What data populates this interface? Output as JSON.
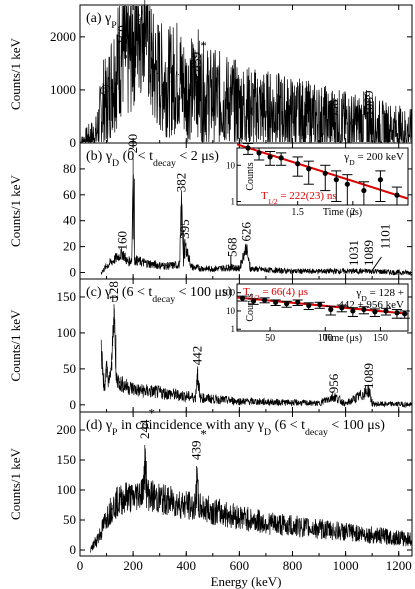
{
  "chart_data": {
    "type": "line",
    "xlabel": "Energy (keV)",
    "xlim": [
      0,
      1250
    ],
    "x_ticks": [
      0,
      200,
      400,
      600,
      800,
      1000,
      1200
    ],
    "panels": [
      {
        "id": "a",
        "label": "(a) γ",
        "label_sub": "P",
        "ylabel": "Counts/1 keV",
        "ylim": [
          0,
          2600
        ],
        "y_ticks": [
          0,
          1000,
          2000
        ],
        "series": [
          {
            "x": [
              0,
              60,
              80,
              90,
              100,
              120,
              140,
              150,
              160,
              175,
              190,
              200,
              210,
              225,
              235,
              244,
              255,
              270,
              290,
              310,
              340,
              370,
              385,
              400,
              430,
              439,
              450,
              480,
              520,
              560,
              600,
              650,
              700,
              750,
              800,
              850,
              900,
              956,
              1000,
              1050,
              1089,
              1120,
              1160,
              1200,
              1250
            ],
            "y": [
              0,
              150,
              550,
              800,
              700,
              1200,
              1450,
              1650,
              1800,
              1600,
              1700,
              2000,
              2200,
              2300,
              2500,
              2850,
              2200,
              1400,
              1300,
              1200,
              1150,
              1300,
              1100,
              1000,
              1050,
              1300,
              1000,
              900,
              850,
              800,
              700,
              650,
              620,
              580,
              540,
              500,
              460,
              420,
              380,
              350,
              420,
              300,
              270,
              240,
              200
            ]
          }
        ],
        "annotations": [
          {
            "text": "@",
            "x": 95,
            "y": 950
          },
          {
            "text": "160",
            "x": 160,
            "y": 1850,
            "rot": true
          },
          {
            "text": "c",
            "x": 218,
            "y": 2320
          },
          {
            "text": "244",
            "x": 244,
            "y": 2880,
            "rot": true,
            "star": true
          },
          {
            "text": "439",
            "x": 439,
            "y": 1350,
            "rot": true,
            "star": true
          },
          {
            "text": "956",
            "x": 956,
            "y": 450,
            "rot": true
          },
          {
            "text": "1089",
            "x": 1089,
            "y": 500,
            "rot": true
          }
        ]
      },
      {
        "id": "b",
        "label": "(b) γ",
        "label_sub": "D",
        "label_rest": " (0 < t",
        "label_sub2": "decay",
        "label_end": " < 2 μs)",
        "ylabel": "Counts/1 keV",
        "ylim": [
          -5,
          100
        ],
        "y_ticks": [
          0,
          20,
          40,
          60,
          80
        ],
        "series": [
          {
            "x": [
              80,
              100,
              130,
              160,
              180,
              195,
              200,
              205,
              230,
              280,
              330,
              375,
              382,
              390,
              395,
              420,
              470,
              520,
              568,
              600,
              626,
              640,
              700,
              800,
              900,
              1000,
              1031,
              1060,
              1089,
              1101,
              1200,
              1250
            ],
            "y": [
              0,
              5,
              10,
              15,
              8,
              10,
              88,
              10,
              8,
              6,
              5,
              6,
              58,
              8,
              22,
              4,
              3,
              3,
              4,
              3,
              20,
              3,
              2,
              1,
              1,
              1,
              1,
              1,
              1,
              1,
              0,
              0
            ]
          }
        ],
        "annotations": [
          {
            "text": "160",
            "x": 160,
            "y": 17,
            "rot": true
          },
          {
            "text": "200",
            "x": 200,
            "y": 92,
            "rot": true
          },
          {
            "text": "382",
            "x": 382,
            "y": 62,
            "rot": true
          },
          {
            "text": "395",
            "x": 395,
            "y": 26,
            "rot": true
          },
          {
            "text": "568",
            "x": 575,
            "y": 12,
            "rot": true
          },
          {
            "text": "626",
            "x": 626,
            "y": 24,
            "rot": true
          },
          {
            "text": "1031",
            "x": 1031,
            "y": 5,
            "rot": true
          },
          {
            "text": "1089",
            "x": 1089,
            "y": 5,
            "rot": true
          },
          {
            "text": "1101",
            "x": 1150,
            "y": 18,
            "rot": true
          }
        ],
        "inset": {
          "title": "γ",
          "title_sub": "D",
          "title_rest": " = 200 keV",
          "xlabel": "Time (μs)",
          "ylabel": "Counts",
          "xlim": [
            0.95,
            2.5
          ],
          "x_ticks": [
            1.5,
            2
          ],
          "y_log_ticks": [
            1,
            10
          ],
          "fit_label": "T",
          "fit_sub": "1/2",
          "fit_rest": " = 222(23) ns",
          "points": [
            {
              "x": 1.05,
              "y": 30,
              "e": 10
            },
            {
              "x": 1.15,
              "y": 22,
              "e": 8
            },
            {
              "x": 1.25,
              "y": 17,
              "e": 7
            },
            {
              "x": 1.35,
              "y": 16,
              "e": 6
            },
            {
              "x": 1.5,
              "y": 11,
              "e": 6
            },
            {
              "x": 1.6,
              "y": 8,
              "e": 5
            },
            {
              "x": 1.75,
              "y": 6,
              "e": 4
            },
            {
              "x": 1.85,
              "y": 4,
              "e": 3
            },
            {
              "x": 1.95,
              "y": 3,
              "e": 2.5
            },
            {
              "x": 2.1,
              "y": 2,
              "e": 1.5
            },
            {
              "x": 2.25,
              "y": 4,
              "e": 3
            },
            {
              "x": 2.4,
              "y": 1.5,
              "e": 1
            }
          ],
          "fit": {
            "x": [
              0.95,
              2.5
            ],
            "y": [
              38,
              1.2
            ]
          }
        }
      },
      {
        "id": "c",
        "label": "(c) γ",
        "label_sub": "D",
        "label_rest": " (6 < t",
        "label_sub2": "decay",
        "label_end": " < 100 μs)",
        "ylabel": "Counts/1 keV",
        "ylim": [
          -10,
          175
        ],
        "y_ticks": [
          0,
          50,
          100,
          150
        ],
        "series": [
          {
            "x": [
              80,
              90,
              100,
              110,
              120,
              128,
              135,
              150,
              180,
              220,
              280,
              340,
              400,
              435,
              442,
              450,
              500,
              600,
              700,
              800,
              900,
              956,
              1000,
              1089,
              1100,
              1200,
              1250
            ],
            "y": [
              80,
              20,
              50,
              30,
              60,
              140,
              40,
              30,
              25,
              20,
              18,
              15,
              12,
              10,
              50,
              10,
              8,
              5,
              4,
              3,
              2,
              12,
              1,
              20,
              1,
              1,
              0
            ]
          }
        ],
        "annotations": [
          {
            "text": "128",
            "x": 128,
            "y": 145,
            "rot": true
          },
          {
            "text": "442",
            "x": 442,
            "y": 55,
            "rot": true
          },
          {
            "text": "956",
            "x": 956,
            "y": 16,
            "rot": true
          },
          {
            "text": "1089",
            "x": 1089,
            "y": 22,
            "rot": true
          }
        ],
        "inset": {
          "title": "γ",
          "title_sub": "D",
          "title_rest": " = 128 +",
          "title_line2": "442 + 956 keV",
          "xlabel": "Time (μs)",
          "ylabel": "Counts",
          "xlim": [
            20,
            175
          ],
          "x_ticks": [
            50,
            100,
            150
          ],
          "y_log_ticks": [
            1,
            10,
            100
          ],
          "fit_label": "T",
          "fit_sub": "1/2",
          "fit_rest": " = 66(4) μs",
          "points": [
            {
              "x": 25,
              "y": 50,
              "e": 15
            },
            {
              "x": 35,
              "y": 35,
              "e": 12
            },
            {
              "x": 45,
              "y": 40,
              "e": 12
            },
            {
              "x": 55,
              "y": 30,
              "e": 10
            },
            {
              "x": 65,
              "y": 25,
              "e": 9
            },
            {
              "x": 75,
              "y": 30,
              "e": 10
            },
            {
              "x": 85,
              "y": 20,
              "e": 8
            },
            {
              "x": 95,
              "y": 22,
              "e": 8
            },
            {
              "x": 105,
              "y": 12,
              "e": 6
            },
            {
              "x": 115,
              "y": 15,
              "e": 6
            },
            {
              "x": 125,
              "y": 10,
              "e": 5
            },
            {
              "x": 135,
              "y": 12,
              "e": 5
            },
            {
              "x": 145,
              "y": 9,
              "e": 4
            },
            {
              "x": 155,
              "y": 10,
              "e": 4
            },
            {
              "x": 165,
              "y": 8,
              "e": 4
            },
            {
              "x": 172,
              "y": 7,
              "e": 3
            }
          ],
          "fit": {
            "x": [
              20,
              175
            ],
            "y": [
              55,
              7
            ]
          }
        }
      },
      {
        "id": "d",
        "label": "(d) γ",
        "label_sub": "P",
        "label_rest": " in coincidence with any γ",
        "label_sub2": "D",
        "label_rest2": " (6 < t",
        "label_sub3": "decay",
        "label_end": " < 100 μs)",
        "ylabel": "Counts/1 keV",
        "ylim": [
          -10,
          230
        ],
        "y_ticks": [
          0,
          50,
          100,
          150,
          200
        ],
        "series": [
          {
            "x": [
              40,
              60,
              80,
              100,
              120,
              140,
              160,
              180,
              200,
              220,
              240,
              244,
              250,
              270,
              300,
              350,
              400,
              435,
              439,
              445,
              500,
              600,
              700,
              800,
              900,
              1000,
              1100,
              1200,
              1250
            ],
            "y": [
              0,
              15,
              30,
              55,
              70,
              80,
              85,
              90,
              85,
              95,
              100,
              175,
              95,
              90,
              85,
              80,
              75,
              70,
              140,
              72,
              65,
              55,
              45,
              40,
              35,
              30,
              25,
              20,
              18
            ]
          }
        ],
        "annotations": [
          {
            "text": "244",
            "x": 244,
            "y": 185,
            "rot": true,
            "star": true
          },
          {
            "text": "439",
            "x": 439,
            "y": 150,
            "rot": true,
            "star": true
          }
        ]
      }
    ]
  }
}
